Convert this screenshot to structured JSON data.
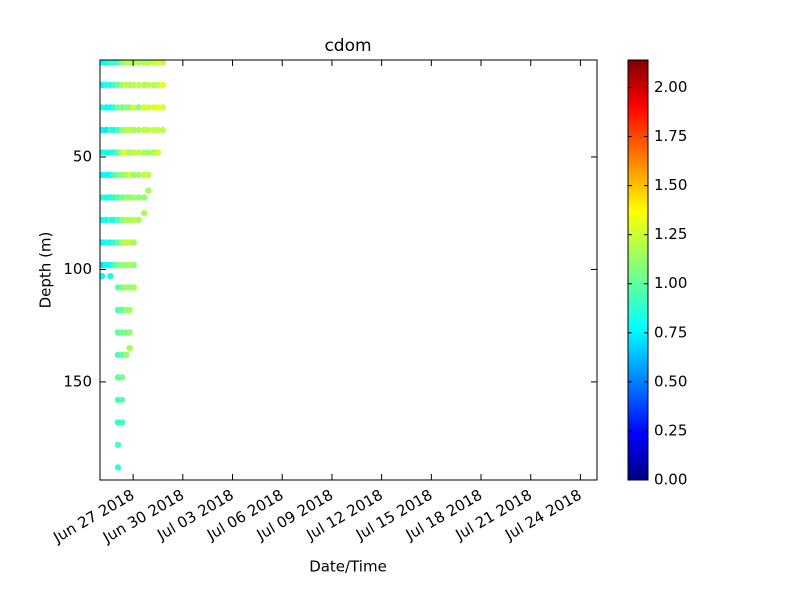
{
  "chart_data": {
    "type": "scatter",
    "title": "cdom",
    "x_label": "Date/Time",
    "y_label": "Depth (m)",
    "xlim": [
      "2018-06-25T00:00",
      "2018-07-25T00:00"
    ],
    "xticks": [
      {
        "value": "2018-06-27T00:00",
        "label": "Jun 27 2018"
      },
      {
        "value": "2018-06-30T00:00",
        "label": "Jun 30 2018"
      },
      {
        "value": "2018-07-03T00:00",
        "label": "Jul 03 2018"
      },
      {
        "value": "2018-07-06T00:00",
        "label": "Jul 06 2018"
      },
      {
        "value": "2018-07-09T00:00",
        "label": "Jul 09 2018"
      },
      {
        "value": "2018-07-12T00:00",
        "label": "Jul 12 2018"
      },
      {
        "value": "2018-07-15T00:00",
        "label": "Jul 15 2018"
      },
      {
        "value": "2018-07-18T00:00",
        "label": "Jul 18 2018"
      },
      {
        "value": "2018-07-21T00:00",
        "label": "Jul 21 2018"
      },
      {
        "value": "2018-07-24T00:00",
        "label": "Jul 24 2018"
      }
    ],
    "ylim": [
      193.6,
      6.9
    ],
    "yticks": [
      50,
      100,
      150
    ],
    "clim": [
      0,
      2.14
    ],
    "colormap": "jet",
    "cticks": [
      {
        "value": 0,
        "label": "0.00"
      },
      {
        "value": 0.25,
        "label": "0.25"
      },
      {
        "value": 0.5,
        "label": "0.50"
      },
      {
        "value": 0.75,
        "label": "0.75"
      },
      {
        "value": 1,
        "label": "1.00"
      },
      {
        "value": 1.25,
        "label": "1.25"
      },
      {
        "value": 1.5,
        "label": "1.50"
      },
      {
        "value": 1.75,
        "label": "1.75"
      },
      {
        "value": 2,
        "label": "2.00"
      }
    ],
    "profiles": [
      {
        "x": "2018-06-25T03:00",
        "y": [
          8,
          18,
          28,
          38,
          48,
          58,
          68,
          78,
          88,
          98,
          103
        ],
        "values": [
          0.85,
          0.8,
          0.9,
          0.8,
          0.85,
          0.8,
          0.9,
          0.85,
          0.8,
          0.75,
          0.8
        ]
      },
      {
        "x": "2018-06-25T09:00",
        "y": [
          8,
          18,
          28,
          38,
          48,
          58,
          68,
          78,
          88,
          98
        ],
        "values": [
          0.8,
          0.85,
          0.8,
          0.75,
          0.85,
          0.8,
          0.85,
          0.8,
          0.85,
          0.8
        ]
      },
      {
        "x": "2018-06-25T15:00",
        "y": [
          8,
          18,
          28,
          38,
          48,
          58,
          68,
          78,
          88,
          98,
          103
        ],
        "values": [
          0.9,
          0.85,
          0.8,
          0.9,
          0.85,
          0.8,
          0.85,
          0.9,
          0.85,
          0.8,
          0.85
        ]
      },
      {
        "x": "2018-06-25T20:00",
        "y": [
          8,
          18,
          28,
          38,
          48,
          58,
          68,
          78,
          88,
          98
        ],
        "values": [
          0.9,
          0.95,
          0.9,
          0.85,
          0.9,
          0.95,
          0.9,
          0.85,
          0.9,
          0.95
        ]
      },
      {
        "x": "2018-06-26T02:00",
        "y": [
          8,
          18,
          28,
          38,
          48,
          58,
          68,
          78,
          88,
          98,
          108,
          118,
          128,
          138,
          148,
          158,
          168,
          178,
          188
        ],
        "values": [
          0.95,
          1.0,
          1.05,
          0.95,
          1.0,
          1.05,
          1.0,
          0.95,
          1.0,
          1.05,
          1.0,
          0.95,
          1.0,
          0.95,
          1.0,
          0.95,
          0.9,
          0.95,
          0.9
        ]
      },
      {
        "x": "2018-06-26T08:00",
        "y": [
          8,
          18,
          28,
          38,
          48,
          58,
          68,
          78,
          88,
          98,
          108,
          118,
          128,
          138,
          148,
          158,
          168
        ],
        "values": [
          1.1,
          1.15,
          1.05,
          1.1,
          1.2,
          1.1,
          1.05,
          1.1,
          1.15,
          1.1,
          1.05,
          1.0,
          1.05,
          1.0,
          1.05,
          1.0,
          0.95
        ]
      },
      {
        "x": "2018-06-26T14:00",
        "y": [
          8,
          18,
          28,
          38,
          48,
          58,
          68,
          78,
          88,
          98,
          108,
          118,
          128,
          138
        ],
        "values": [
          1.15,
          1.2,
          1.1,
          1.15,
          1.25,
          1.15,
          1.1,
          1.15,
          1.2,
          1.1,
          1.15,
          1.1,
          1.05,
          1.1
        ]
      },
      {
        "x": "2018-06-26T19:00",
        "y": [
          8,
          18,
          28,
          38,
          48,
          58,
          68,
          78,
          88,
          98,
          108,
          118,
          128,
          135
        ],
        "values": [
          1.2,
          1.15,
          1.1,
          1.2,
          1.15,
          1.25,
          1.1,
          1.15,
          1.2,
          1.15,
          1.1,
          1.15,
          1.1,
          1.15
        ]
      },
      {
        "x": "2018-06-27T01:00",
        "y": [
          8,
          18,
          28,
          38,
          48,
          58,
          68,
          78,
          88,
          98,
          108
        ],
        "values": [
          1.15,
          1.2,
          1.25,
          1.15,
          1.2,
          1.1,
          1.15,
          1.2,
          1.15,
          1.1,
          1.15
        ]
      },
      {
        "x": "2018-06-27T08:00",
        "y": [
          8,
          18,
          28,
          38,
          48,
          58,
          68,
          78
        ],
        "values": [
          1.15,
          1.2,
          1.1,
          1.15,
          1.2,
          1.15,
          1.1,
          1.15
        ]
      },
      {
        "x": "2018-06-27T16:00",
        "y": [
          8,
          18,
          28,
          38,
          48,
          58,
          68,
          75
        ],
        "values": [
          1.2,
          1.15,
          1.25,
          1.2,
          1.15,
          1.2,
          1.1,
          1.15
        ]
      },
      {
        "x": "2018-06-27T22:00",
        "y": [
          8,
          18,
          28,
          38,
          48,
          58,
          65
        ],
        "values": [
          1.15,
          1.2,
          1.25,
          1.2,
          1.15,
          1.2,
          1.15
        ]
      },
      {
        "x": "2018-06-28T06:00",
        "y": [
          8,
          18,
          28,
          38,
          48
        ],
        "values": [
          1.2,
          1.15,
          1.25,
          1.2,
          1.15
        ]
      },
      {
        "x": "2018-06-28T12:00",
        "y": [
          8,
          18,
          28,
          38,
          48
        ],
        "values": [
          1.25,
          1.2,
          1.3,
          1.2,
          1.25
        ]
      },
      {
        "x": "2018-06-28T19:00",
        "y": [
          8,
          18,
          28,
          38
        ],
        "values": [
          1.2,
          1.3,
          1.25,
          1.2
        ]
      }
    ]
  }
}
